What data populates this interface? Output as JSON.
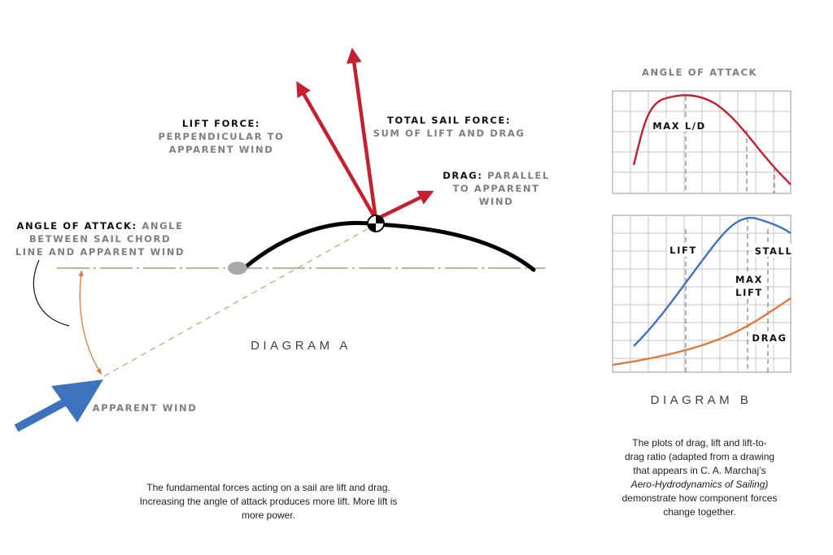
{
  "diagram_a": {
    "lift_force": {
      "title": "LIFT FORCE:",
      "line1": "PERPENDICULAR TO",
      "line2": "APPARENT WIND"
    },
    "total_sail_force": {
      "title": "TOTAL SAIL FORCE:",
      "line1": "SUM OF LIFT AND DRAG"
    },
    "drag": {
      "title": "DRAG:",
      "line1": "PARALLEL",
      "line2": "TO APPARENT",
      "line3": "WIND"
    },
    "angle_of_attack": {
      "title": "ANGLE OF ATTACK:",
      "line1": "ANGLE",
      "line2": "BETWEEN SAIL CHORD",
      "line3": "LINE AND APPARENT WIND"
    },
    "apparent_wind": "APPARENT WIND",
    "label": "DIAGRAM A",
    "caption_line1": "The fundamental forces acting on a sail are lift and drag.",
    "caption_line2": "Increasing the angle of attack produces more lift. More lift is",
    "caption_line3": "more power."
  },
  "diagram_b": {
    "top_title": "ANGLE OF ATTACK",
    "max_ld": "MAX L/D",
    "lift": "LIFT",
    "stall": "STALL",
    "max_lift_1": "MAX",
    "max_lift_2": "LIFT",
    "drag": "DRAG",
    "label": "DIAGRAM B",
    "caption_line1": "The plots of drag, lift and lift-to-",
    "caption_line2": "drag ratio (adapted from a drawing",
    "caption_line3": "that appears in C. A. Marchaj’s",
    "caption_book": "Aero-Hydrodynamics of Sailing)",
    "caption_line5": "demonstrate how component forces",
    "caption_line6": "change together."
  },
  "colors": {
    "force_arrow": "#c4202f",
    "wind_arrow": "#3f72bd",
    "chord_line": "#6aa34a",
    "angle_arc": "#e07a3c",
    "lift_curve": "#3f72bd",
    "drag_curve": "#e07a3c",
    "ld_curve": "#c4202f",
    "grid": "#b5b5b5"
  }
}
